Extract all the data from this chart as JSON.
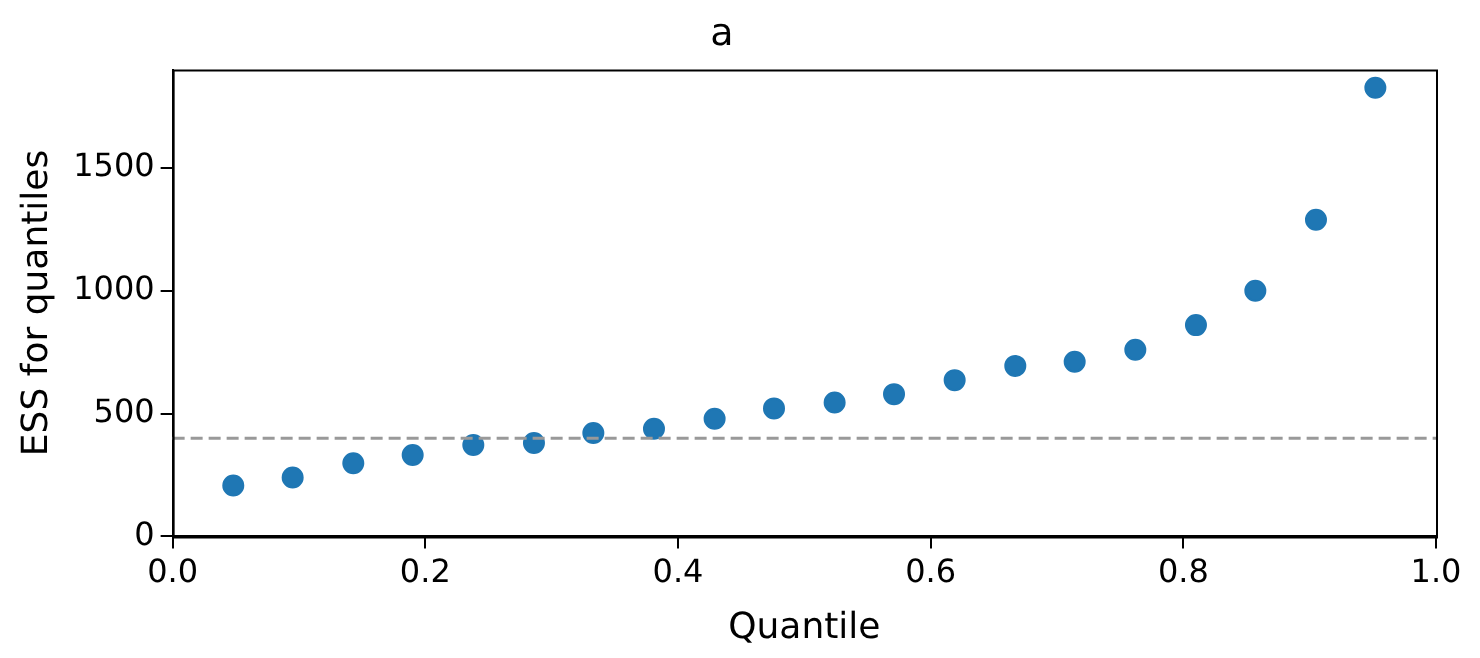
{
  "chart_data": {
    "type": "scatter",
    "title": "a",
    "xlabel": "Quantile",
    "ylabel": "ESS for quantiles",
    "x": [
      0.048,
      0.095,
      0.143,
      0.19,
      0.238,
      0.286,
      0.333,
      0.381,
      0.429,
      0.476,
      0.524,
      0.571,
      0.619,
      0.667,
      0.714,
      0.762,
      0.81,
      0.857,
      0.905,
      0.952
    ],
    "series": [
      {
        "color": "#1f77b4",
        "values": [
          207,
          240,
          298,
          331,
          372,
          380,
          421,
          438,
          479,
          521,
          545,
          579,
          636,
          694,
          711,
          760,
          860,
          1000,
          1289,
          1826
        ]
      }
    ],
    "xlim": [
      0,
      1
    ],
    "xticks": [
      {
        "value": 0,
        "label": "0.0"
      },
      {
        "value": 0.2,
        "label": "0.2"
      },
      {
        "value": 0.4,
        "label": "0.4"
      },
      {
        "value": 0.6,
        "label": "0.6"
      },
      {
        "value": 0.8,
        "label": "0.8"
      },
      {
        "value": 1,
        "label": "1.0"
      }
    ],
    "ylim": [
      0,
      1900
    ],
    "yticks": [
      0,
      500,
      1000,
      1500
    ],
    "ref_lines": [
      {
        "axis": "y",
        "value": 400,
        "color": "#999999",
        "line_style": "dashed"
      }
    ],
    "grid": false,
    "legend": false,
    "marker": "circle"
  }
}
